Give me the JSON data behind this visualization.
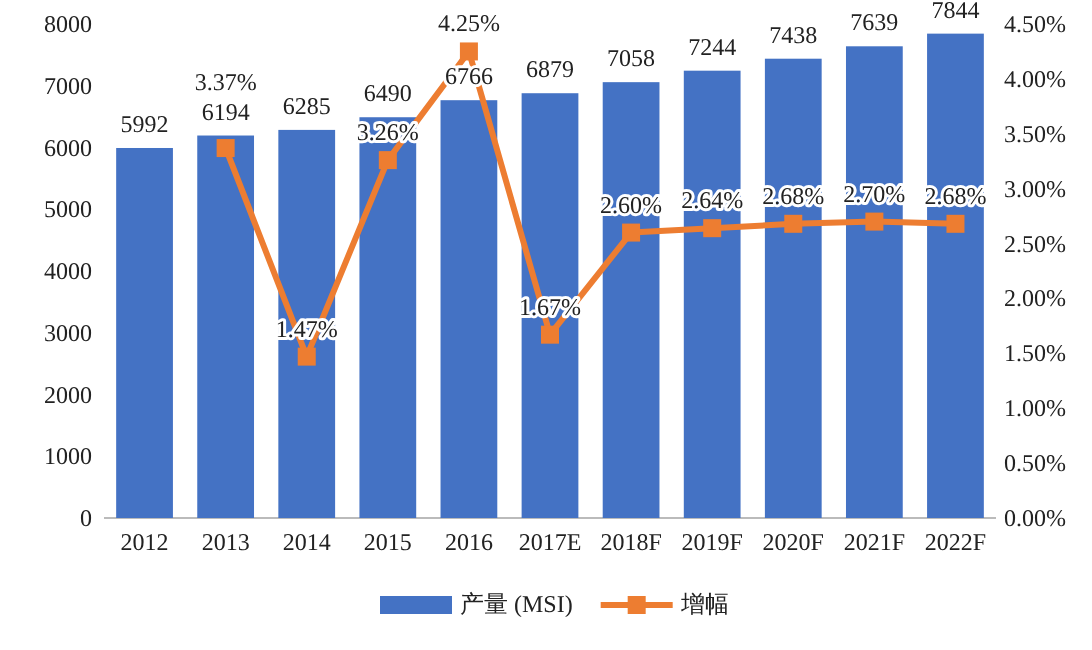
{
  "chart_data": {
    "type": "bar",
    "categories": [
      "2012",
      "2013",
      "2014",
      "2015",
      "2016",
      "2017E",
      "2018F",
      "2019F",
      "2020F",
      "2021F",
      "2022F"
    ],
    "series": [
      {
        "name": "产量 (MSI)",
        "color": "#4472c4",
        "values": [
          5992,
          6194,
          6285,
          6490,
          6766,
          6879,
          7058,
          7244,
          7438,
          7639,
          7844
        ],
        "value_labels": [
          "5992",
          "6194",
          "6285",
          "6490",
          "6766",
          "6879",
          "7058",
          "7244",
          "7438",
          "7639",
          "7844"
        ]
      },
      {
        "name": "增幅",
        "type": "line",
        "axis": "y2",
        "color": "#ed7d31",
        "marker": "square",
        "values": [
          null,
          3.37,
          1.47,
          3.26,
          4.25,
          1.67,
          2.6,
          2.64,
          2.68,
          2.7,
          2.68
        ],
        "value_labels": [
          null,
          "3.37%",
          "1.47%",
          "3.26%",
          "4.25%",
          "1.67%",
          "2.60%",
          "2.64%",
          "2.68%",
          "2.70%",
          "2.68%"
        ]
      }
    ],
    "ylim": [
      0,
      8000
    ],
    "yticks": [
      0,
      1000,
      2000,
      3000,
      4000,
      5000,
      6000,
      7000,
      8000
    ],
    "y2lim": [
      0,
      4.5
    ],
    "y2ticks": [
      {
        "value": 0,
        "label": "0.00%"
      },
      {
        "value": 0.5,
        "label": "0.50%"
      },
      {
        "value": 1,
        "label": "1.00%"
      },
      {
        "value": 1.5,
        "label": "1.50%"
      },
      {
        "value": 2,
        "label": "2.00%"
      },
      {
        "value": 2.5,
        "label": "2.50%"
      },
      {
        "value": 3,
        "label": "3.00%"
      },
      {
        "value": 3.5,
        "label": "3.50%"
      },
      {
        "value": 4,
        "label": "4.00%"
      },
      {
        "value": 4.5,
        "label": "4.50%"
      }
    ],
    "legend": "bottom"
  }
}
